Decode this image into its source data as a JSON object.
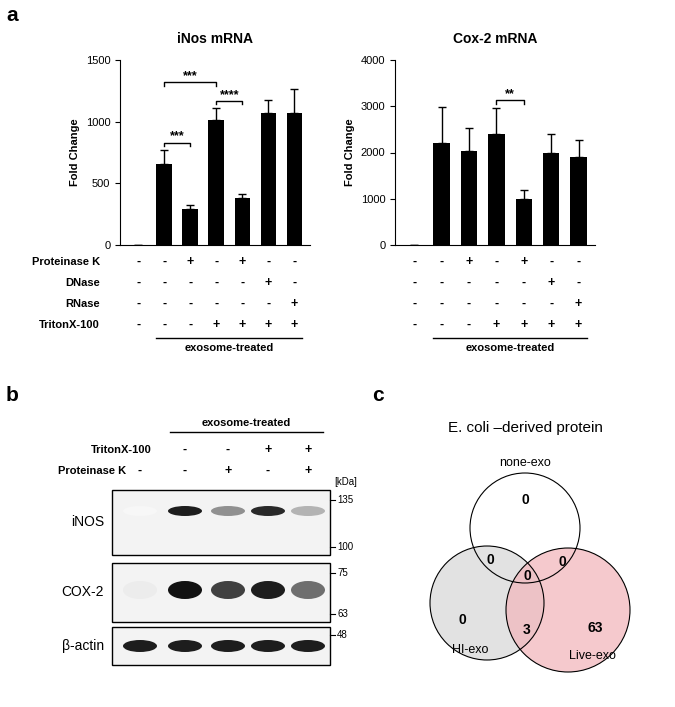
{
  "chart_data": [
    {
      "panel": "a",
      "type": "bar",
      "title": "iNos mRNA",
      "y_label": "Fold Change",
      "categories": [
        null,
        null,
        null,
        null,
        null,
        null,
        null
      ],
      "values": [
        0,
        660,
        295,
        1015,
        385,
        1070,
        1070
      ],
      "errors": [
        0,
        110,
        30,
        95,
        30,
        105,
        195
      ],
      "color": "#000000",
      "ylim": [
        0,
        1500
      ],
      "yticks": [
        0,
        500,
        1000,
        1500
      ],
      "significance": [
        {
          "from": 1,
          "to": 2,
          "label": "***"
        },
        {
          "from": 3,
          "to": 4,
          "label": "****"
        },
        {
          "from": 1,
          "to": 3,
          "label": "***"
        }
      ],
      "treatments": [
        {
          "label": "Proteinase K",
          "marks": [
            "-",
            "-",
            "+",
            "-",
            "+",
            "-",
            "-"
          ]
        },
        {
          "label": "DNase",
          "marks": [
            "-",
            "-",
            "-",
            "-",
            "-",
            "+",
            "-"
          ]
        },
        {
          "label": "RNase",
          "marks": [
            "-",
            "-",
            "-",
            "-",
            "-",
            "-",
            "+"
          ]
        },
        {
          "label": "TritonX-100",
          "marks": [
            "-",
            "-",
            "-",
            "+",
            "+",
            "+",
            "+"
          ]
        }
      ],
      "group": {
        "label": "exosome-treated",
        "from": 1,
        "to": 6
      }
    },
    {
      "type": "bar",
      "title": "Cox-2 mRNA",
      "y_label": "Fold Change",
      "categories": [
        null,
        null,
        null,
        null,
        null,
        null,
        null
      ],
      "values": [
        0,
        2200,
        2040,
        2390,
        1000,
        1990,
        1900
      ],
      "errors": [
        0,
        790,
        480,
        580,
        200,
        420,
        380
      ],
      "color": "#000000",
      "ylim": [
        0,
        4000
      ],
      "yticks": [
        0,
        1000,
        2000,
        3000,
        4000
      ],
      "significance": [
        {
          "from": 3,
          "to": 4,
          "label": "**"
        }
      ],
      "treatments": [
        {
          "marks": [
            "-",
            "-",
            "+",
            "-",
            "+",
            "-",
            "-"
          ]
        },
        {
          "marks": [
            "-",
            "-",
            "-",
            "-",
            "-",
            "+",
            "-"
          ]
        },
        {
          "marks": [
            "-",
            "-",
            "-",
            "-",
            "-",
            "-",
            "+"
          ]
        },
        {
          "marks": [
            "-",
            "-",
            "-",
            "+",
            "+",
            "+",
            "+"
          ]
        }
      ],
      "group": {
        "label": "exosome-treated",
        "from": 1,
        "to": 6
      }
    }
  ],
  "blot": {
    "panel": "b",
    "group": {
      "label": "exosome-treated",
      "from": 1,
      "to": 4
    },
    "treatments": [
      {
        "label": "TritonX-100",
        "marks": [
          null,
          "-",
          "-",
          "+",
          "+"
        ]
      },
      {
        "label": "Proteinase K",
        "marks": [
          "-",
          "-",
          "+",
          "-",
          "+"
        ]
      }
    ],
    "unit": "[kDa]",
    "rows": [
      {
        "label": "iNOS",
        "band_intensity": [
          0,
          0.95,
          0.45,
          0.9,
          0.3
        ],
        "markers": [
          135,
          100
        ]
      },
      {
        "label": "COX-2",
        "band_intensity": [
          0.05,
          1.0,
          0.8,
          0.95,
          0.6
        ],
        "markers": [
          75,
          63
        ]
      },
      {
        "label": "β-actin",
        "band_intensity": [
          0.95,
          0.95,
          0.95,
          0.95,
          0.95
        ],
        "markers": [
          48
        ]
      }
    ]
  },
  "venn": {
    "panel": "c",
    "title": "E. coli –derived protein",
    "sets": [
      {
        "name": "none-exo",
        "color": "#ffffff"
      },
      {
        "name": "HI-exo",
        "color": "#d9d9d9"
      },
      {
        "name": "Live-exo",
        "color": "#f2b8bd"
      }
    ],
    "regions": [
      {
        "sets": [
          "none-exo"
        ],
        "count": 0
      },
      {
        "sets": [
          "HI-exo"
        ],
        "count": 0
      },
      {
        "sets": [
          "Live-exo"
        ],
        "count": 63
      },
      {
        "sets": [
          "none-exo",
          "HI-exo"
        ],
        "count": 0
      },
      {
        "sets": [
          "none-exo",
          "Live-exo"
        ],
        "count": 0
      },
      {
        "sets": [
          "HI-exo",
          "Live-exo"
        ],
        "count": 3
      },
      {
        "sets": [
          "none-exo",
          "HI-exo",
          "Live-exo"
        ],
        "count": 0
      }
    ]
  }
}
